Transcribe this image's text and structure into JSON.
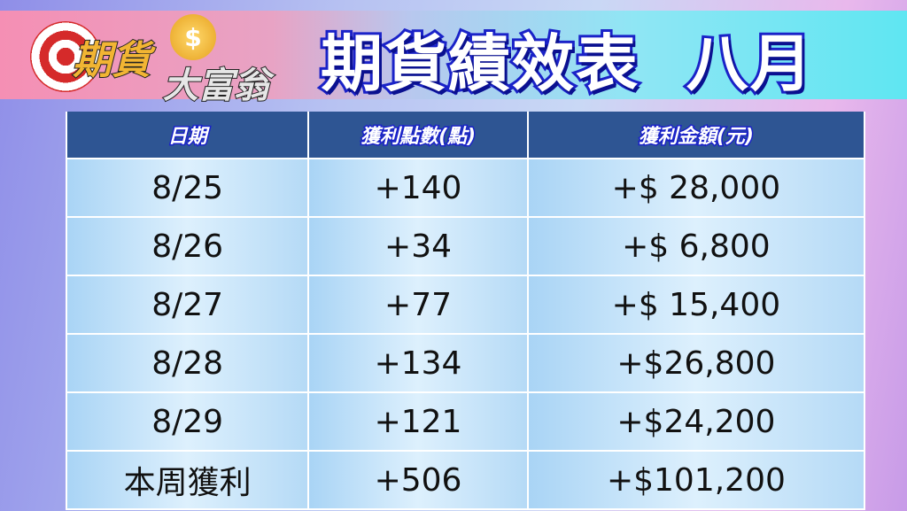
{
  "logo": {
    "line1": "期貨",
    "line2": "大富翁",
    "coin": "$"
  },
  "title": "期貨績效表  八月",
  "table": {
    "headers": [
      "日期",
      "獲利點數(點)",
      "獲利金額(元)"
    ],
    "rows": [
      [
        "8/25",
        "+140",
        "+$ 28,000"
      ],
      [
        "8/26",
        "+34",
        "+$ 6,800"
      ],
      [
        "8/27",
        "+77",
        "+$ 15,400"
      ],
      [
        "8/28",
        "+134",
        "+$26,800"
      ],
      [
        "8/29",
        "+121",
        "+$24,200"
      ],
      [
        "本周獲利",
        "+506",
        "+$101,200"
      ]
    ]
  },
  "colors": {
    "header_bg": "#2e5593",
    "title_stroke": "#1a22c8"
  }
}
